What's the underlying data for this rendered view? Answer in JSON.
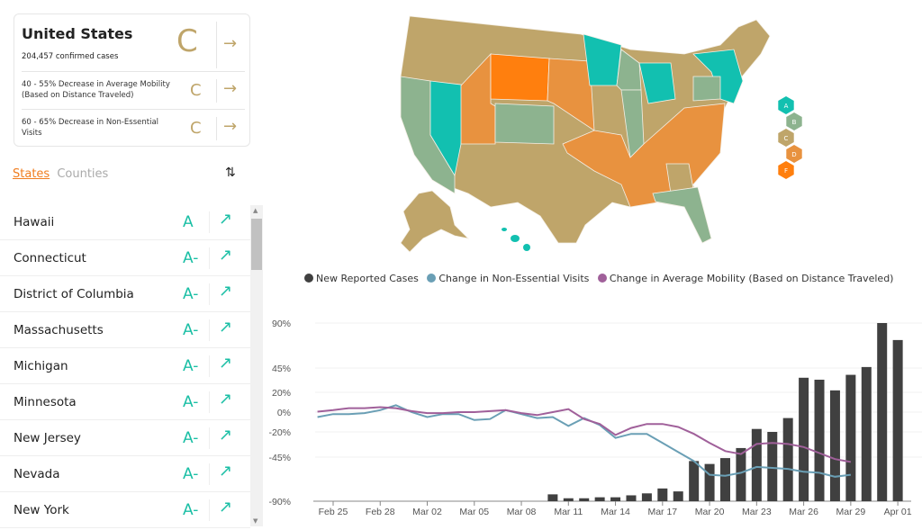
{
  "summary": {
    "title": "United States",
    "cases": "204,457 confirmed cases",
    "grade": "C",
    "metrics": [
      {
        "label": "40 - 55% Decrease in Average Mobility (Based on Distance Traveled)",
        "grade": "C"
      },
      {
        "label": "60 - 65% Decrease in Non-Essential Visits",
        "grade": "C"
      }
    ],
    "arrow": "→"
  },
  "tabs": {
    "states": "States",
    "counties": "Counties",
    "sort_icon": "⇅"
  },
  "states": [
    {
      "name": "Hawaii",
      "grade": "A"
    },
    {
      "name": "Connecticut",
      "grade": "A-"
    },
    {
      "name": "District of Columbia",
      "grade": "A-"
    },
    {
      "name": "Massachusetts",
      "grade": "A-"
    },
    {
      "name": "Michigan",
      "grade": "A-"
    },
    {
      "name": "Minnesota",
      "grade": "A-"
    },
    {
      "name": "New Jersey",
      "grade": "A-"
    },
    {
      "name": "Nevada",
      "grade": "A-"
    },
    {
      "name": "New York",
      "grade": "A-"
    }
  ],
  "trend_arrow": "↗",
  "map_legend": [
    {
      "grade": "A",
      "color": "#12c0b0"
    },
    {
      "grade": "B",
      "color": "#8db38f"
    },
    {
      "grade": "C",
      "color": "#bfa56a"
    },
    {
      "grade": "D",
      "color": "#e8923f"
    },
    {
      "grade": "F",
      "color": "#ff7f0e"
    }
  ],
  "chart_data": {
    "type": "bar+line",
    "legend": [
      {
        "name": "New Reported Cases",
        "color": "#404040"
      },
      {
        "name": "Change in Non-Essential Visits",
        "color": "#6a9fb5"
      },
      {
        "name": "Change in Average Mobility (Based on Distance Traveled)",
        "color": "#a0609a"
      }
    ],
    "y_ticks": [
      "90%",
      "45%",
      "20%",
      "0%",
      "-20%",
      "-45%",
      "-90%"
    ],
    "y_tick_values": [
      90,
      45,
      20,
      0,
      -20,
      -45,
      -90
    ],
    "x_ticks": [
      "Feb 25",
      "Feb 28",
      "Mar 02",
      "Mar 05",
      "Mar 08",
      "Mar 11",
      "Mar 14",
      "Mar 17",
      "Mar 20",
      "Mar 23",
      "Mar 26",
      "Mar 29",
      "Apr 01"
    ],
    "bars": {
      "name": "New Reported Cases",
      "dates": [
        "Mar 10",
        "Mar 11",
        "Mar 12",
        "Mar 13",
        "Mar 14",
        "Mar 15",
        "Mar 16",
        "Mar 17",
        "Mar 18",
        "Mar 19",
        "Mar 20",
        "Mar 21",
        "Mar 22",
        "Mar 23",
        "Mar 24",
        "Mar 25",
        "Mar 26",
        "Mar 27",
        "Mar 28",
        "Mar 29",
        "Mar 30",
        "Mar 31",
        "Apr 01"
      ],
      "values": [
        -83,
        -87,
        -87,
        -86,
        -86,
        -84,
        -82,
        -77,
        -80,
        -49,
        -52,
        -46,
        -36,
        -17,
        -20,
        -6,
        35,
        33,
        22,
        38,
        46,
        90,
        73
      ]
    },
    "series": [
      {
        "name": "Change in Non-Essential Visits",
        "start": "Feb 24",
        "values": [
          -5,
          -2,
          -2,
          -1,
          2,
          7,
          0,
          -5,
          -2,
          -2,
          -8,
          -7,
          2,
          -2,
          -6,
          -5,
          -14,
          -6,
          -13,
          -26,
          -22,
          -22,
          -31,
          -40,
          -49,
          -63,
          -64,
          -61,
          -55,
          -56,
          -57,
          -60,
          -61,
          -65,
          -63
        ]
      },
      {
        "name": "Change in Average Mobility (Based on Distance Traveled)",
        "start": "Feb 24",
        "values": [
          0.5,
          2,
          4,
          4,
          5,
          4,
          1,
          -1,
          -1,
          0,
          0,
          1,
          2,
          -1,
          -3,
          0,
          3,
          -7,
          -12,
          -23,
          -16,
          -12,
          -12,
          -15,
          -22,
          -31,
          -39,
          -42,
          -32,
          -31,
          -32,
          -35,
          -41,
          -47,
          -50
        ]
      }
    ]
  }
}
